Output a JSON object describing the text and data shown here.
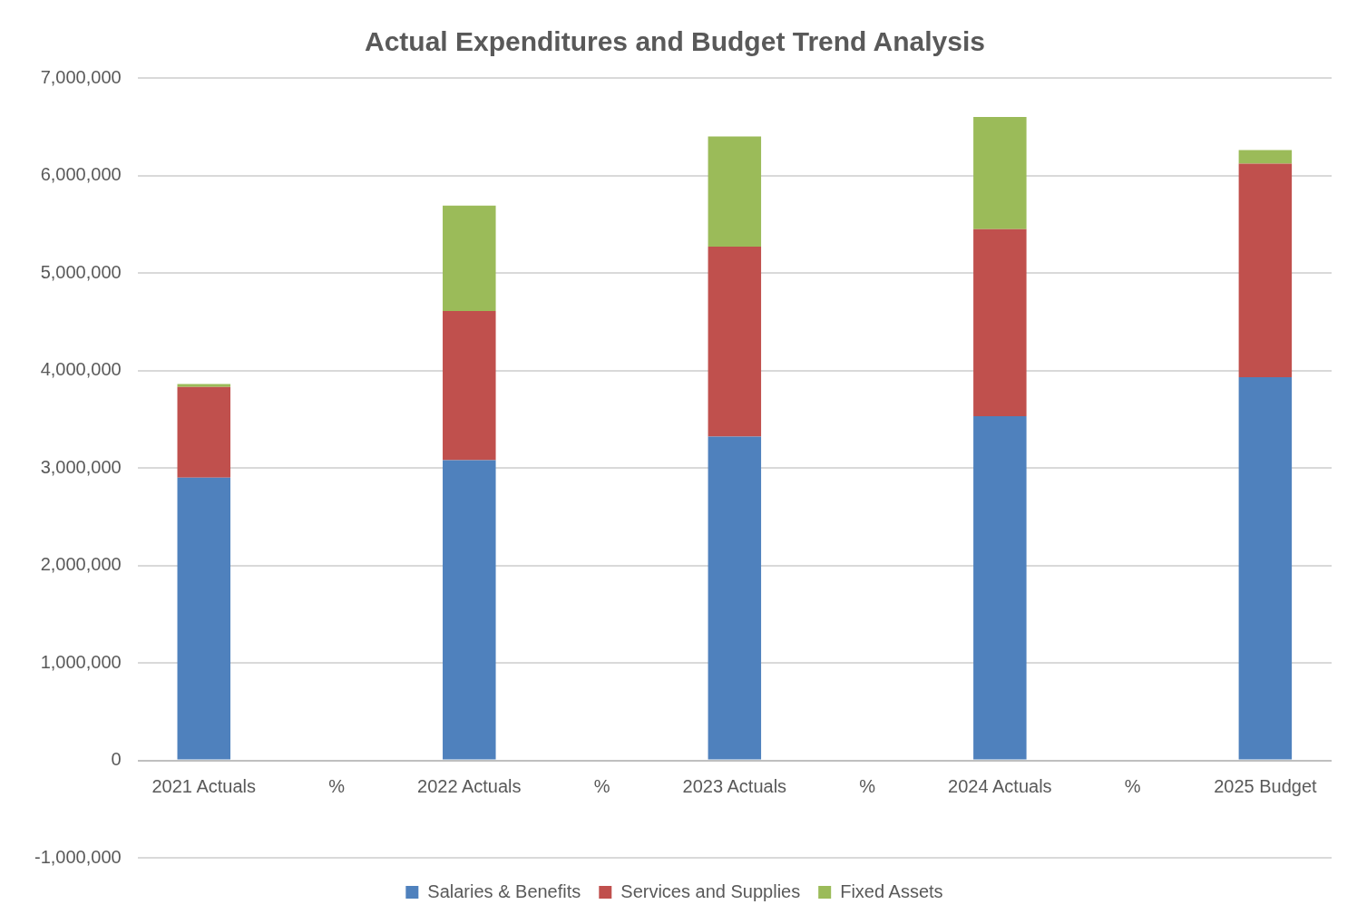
{
  "chart_data": {
    "type": "bar",
    "title": "Actual Expenditures and Budget Trend Analysis",
    "stacked": true,
    "categories": [
      "2021 Actuals",
      "%",
      "2022 Actuals",
      "%",
      "2023 Actuals",
      "%",
      "2024 Actuals",
      "%",
      "2025 Budget"
    ],
    "series": [
      {
        "name": "Salaries & Benefits",
        "color": "#4f81bd",
        "values": [
          2900000,
          null,
          3080000,
          null,
          3320000,
          null,
          3530000,
          null,
          3930000
        ]
      },
      {
        "name": "Services and Supplies",
        "color": "#c0504d",
        "values": [
          930000,
          null,
          1530000,
          null,
          1950000,
          null,
          1920000,
          null,
          2190000
        ]
      },
      {
        "name": "Fixed Assets",
        "color": "#9bbb59",
        "values": [
          30000,
          null,
          1080000,
          null,
          1130000,
          null,
          1150000,
          null,
          140000
        ]
      }
    ],
    "ylim": [
      -1000000,
      7000000
    ],
    "yticks": [
      {
        "value": -1000000,
        "label": "-1,000,000"
      },
      0,
      {
        "value": 1000000,
        "label": "1,000,000"
      },
      {
        "value": 2000000,
        "label": "2,000,000"
      },
      {
        "value": 3000000,
        "label": "3,000,000"
      },
      {
        "value": 4000000,
        "label": "4,000,000"
      },
      {
        "value": 5000000,
        "label": "5,000,000"
      },
      {
        "value": 6000000,
        "label": "6,000,000"
      },
      {
        "value": 7000000,
        "label": "7,000,000"
      }
    ],
    "grid": "y",
    "legend": "bottom"
  }
}
